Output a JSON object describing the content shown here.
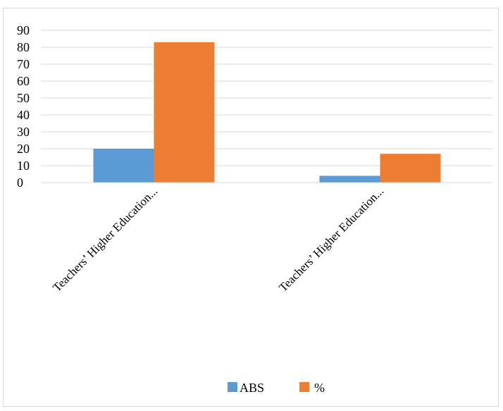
{
  "chart_data": {
    "type": "bar",
    "categories": [
      "Teachers’ Higher Education...",
      "Teachers’ Higher Education..."
    ],
    "series": [
      {
        "name": "ABS",
        "values": [
          20,
          4
        ],
        "color": "#5b9bd5"
      },
      {
        "name": "%",
        "values": [
          83,
          17
        ],
        "color": "#ed7d31"
      }
    ],
    "ylim": [
      0,
      90
    ],
    "yticks": [
      0,
      10,
      20,
      30,
      40,
      50,
      60,
      70,
      80,
      90
    ],
    "grid": true,
    "legend": "bottom"
  }
}
